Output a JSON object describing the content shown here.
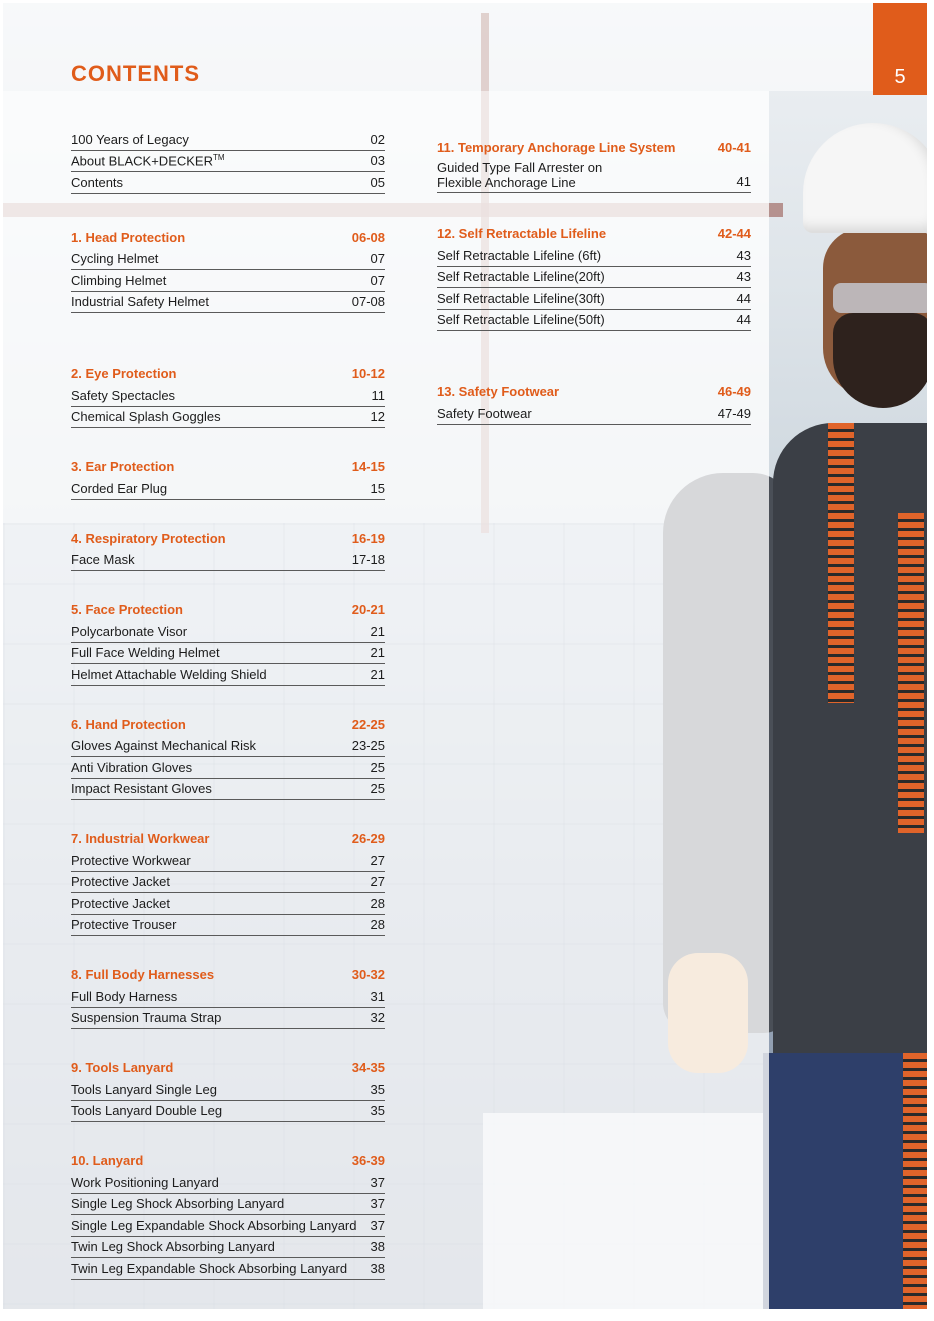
{
  "page": {
    "title": "CONTENTS",
    "page_number": "5",
    "accent": "#e05c1b"
  },
  "left_column": {
    "intro": [
      {
        "label": "100 Years of Legacy",
        "page": "02"
      },
      {
        "label": "About BLACK+DECKER",
        "sup": "TM",
        "page": "03"
      },
      {
        "label": "Contents",
        "page": "05"
      }
    ],
    "sections": [
      {
        "heading": "1. Head Protection",
        "range": "06-08",
        "items": [
          {
            "label": "Cycling Helmet",
            "page": "07"
          },
          {
            "label": "Climbing Helmet",
            "page": "07"
          },
          {
            "label": "Industrial Safety Helmet",
            "page": "07-08"
          }
        ]
      },
      {
        "heading": "2. Eye Protection",
        "range": "10-12",
        "items": [
          {
            "label": "Safety Spectacles",
            "page": "11"
          },
          {
            "label": "Chemical Splash Goggles",
            "page": "12"
          }
        ]
      },
      {
        "heading": "3. Ear Protection",
        "range": "14-15",
        "items": [
          {
            "label": "Corded Ear Plug",
            "page": "15"
          }
        ]
      },
      {
        "heading": "4. Respiratory Protection",
        "range": "16-19",
        "items": [
          {
            "label": "Face Mask",
            "page": "17-18"
          }
        ]
      },
      {
        "heading": "5. Face Protection",
        "range": "20-21",
        "items": [
          {
            "label": "Polycarbonate Visor",
            "page": "21"
          },
          {
            "label": "Full Face Welding Helmet",
            "page": "21"
          },
          {
            "label": "Helmet Attachable Welding Shield",
            "page": "21"
          }
        ]
      },
      {
        "heading": "6. Hand Protection",
        "range": "22-25",
        "items": [
          {
            "label": "Gloves Against Mechanical Risk",
            "page": "23-25"
          },
          {
            "label": "Anti Vibration Gloves",
            "page": "25"
          },
          {
            "label": "Impact Resistant Gloves",
            "page": "25"
          }
        ]
      },
      {
        "heading": "7. Industrial Workwear",
        "range": "26-29",
        "items": [
          {
            "label": "Protective Workwear",
            "page": "27"
          },
          {
            "label": "Protective Jacket",
            "page": "27"
          },
          {
            "label": "Protective Jacket",
            "page": "28"
          },
          {
            "label": "Protective Trouser",
            "page": "28"
          }
        ]
      },
      {
        "heading": "8. Full Body Harnesses",
        "range": "30-32",
        "items": [
          {
            "label": "Full Body Harness",
            "page": "31"
          },
          {
            "label": "Suspension Trauma Strap",
            "page": "32"
          }
        ]
      },
      {
        "heading": "9. Tools Lanyard",
        "range": "34-35",
        "items": [
          {
            "label": "Tools Lanyard Single Leg",
            "page": "35"
          },
          {
            "label": "Tools Lanyard Double Leg",
            "page": "35"
          }
        ]
      },
      {
        "heading": "10. Lanyard",
        "range": "36-39",
        "items": [
          {
            "label": "Work Positioning Lanyard",
            "page": "37"
          },
          {
            "label": "Single Leg Shock Absorbing Lanyard",
            "page": "37"
          },
          {
            "label": "Single Leg Expandable Shock Absorbing Lanyard",
            "page": "37"
          },
          {
            "label": "Twin Leg Shock Absorbing Lanyard",
            "page": "38"
          },
          {
            "label": "Twin Leg Expandable Shock Absorbing Lanyard",
            "page": "38"
          }
        ]
      }
    ]
  },
  "right_column": {
    "sections": [
      {
        "heading": "11. Temporary Anchorage Line System",
        "range": "40-41",
        "items": [
          {
            "label": "Guided Type Fall Arrester on Flexible Anchorage Line",
            "page": "41"
          }
        ]
      },
      {
        "heading": "12. Self Retractable Lifeline",
        "range": "42-44",
        "items": [
          {
            "label": "Self Retractable Lifeline (6ft)",
            "page": "43"
          },
          {
            "label": "Self Retractable Lifeline(20ft)",
            "page": "43"
          },
          {
            "label": "Self Retractable Lifeline(30ft)",
            "page": "44"
          },
          {
            "label": "Self Retractable Lifeline(50ft)",
            "page": "44"
          }
        ]
      },
      {
        "heading": "13. Safety Footwear",
        "range": "46-49",
        "items": [
          {
            "label": "Safety Footwear",
            "page": "47-49"
          }
        ]
      }
    ]
  }
}
